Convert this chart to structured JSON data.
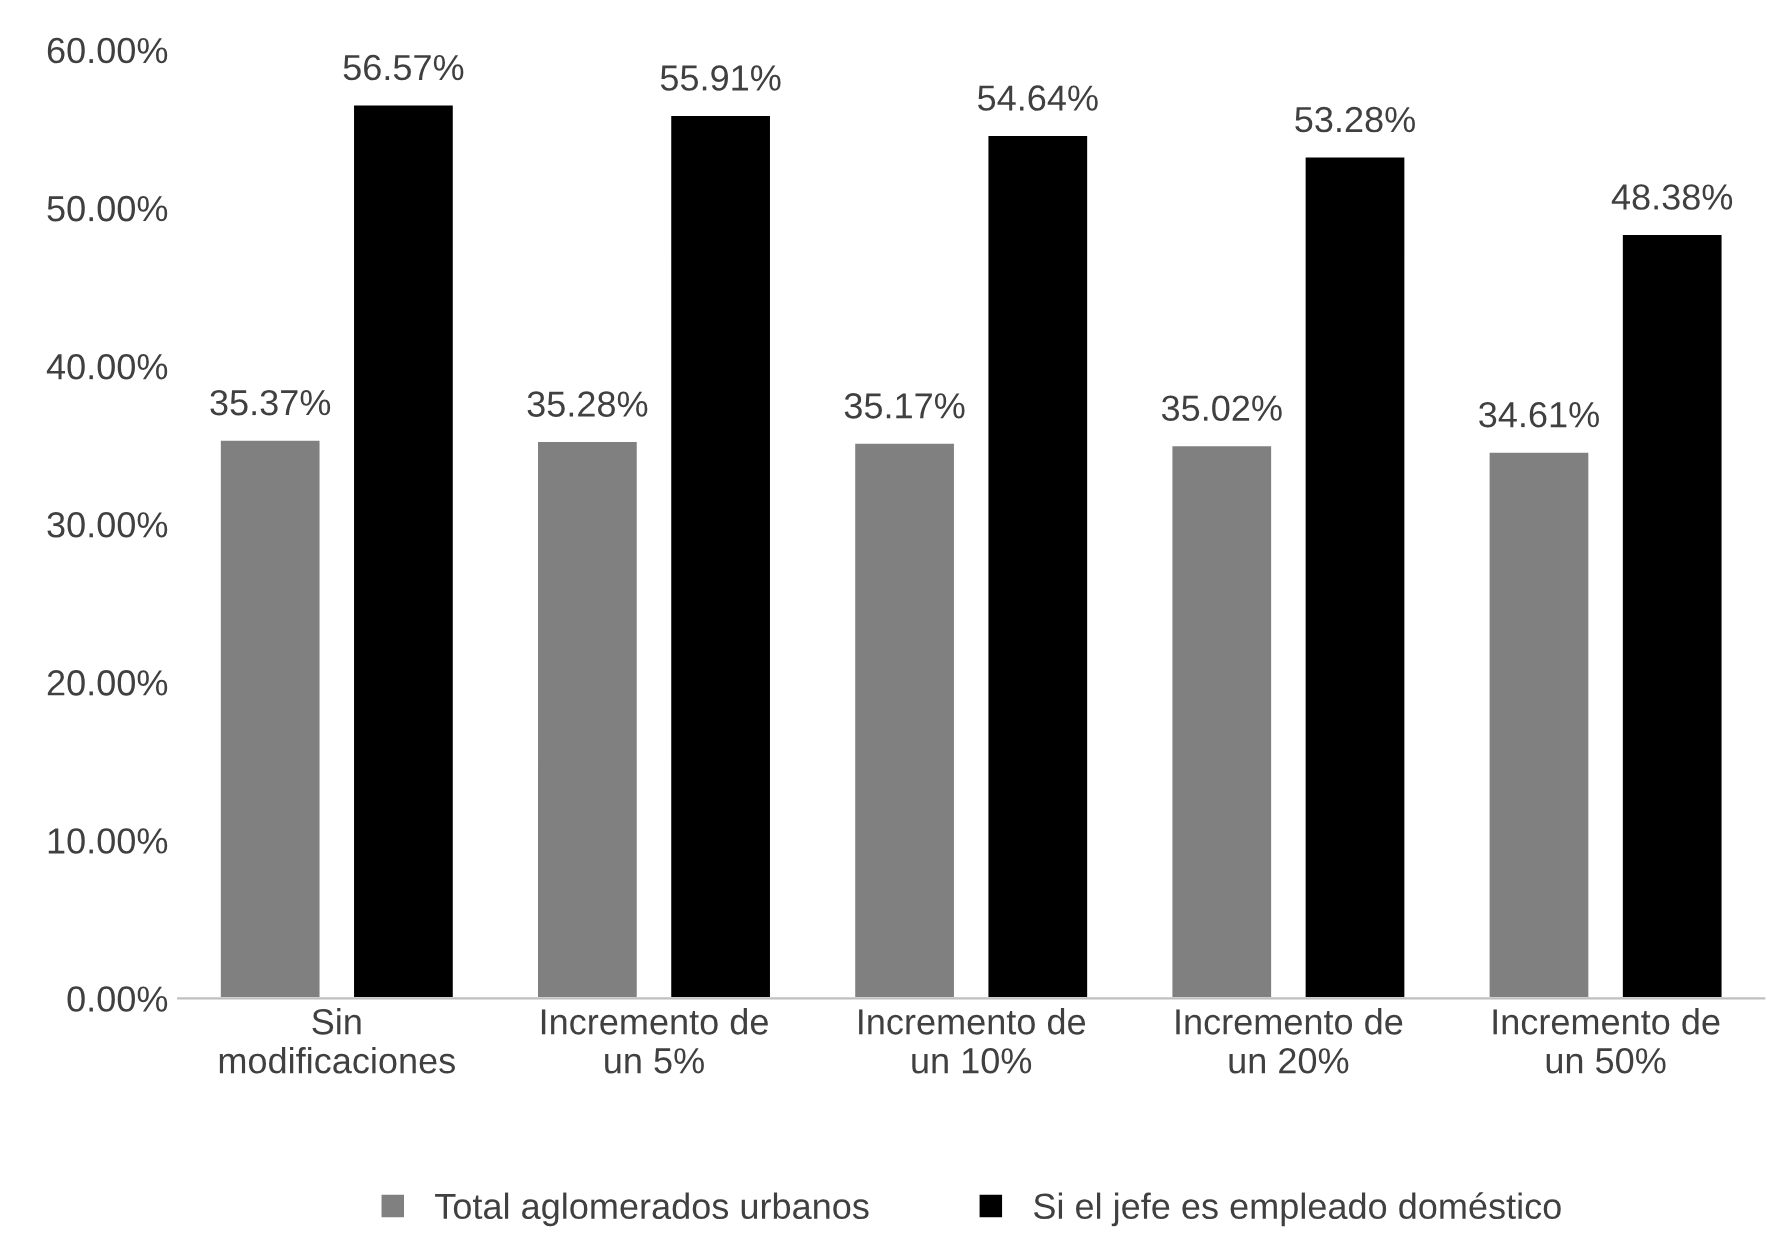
{
  "chart_data": {
    "type": "bar",
    "categories": [
      "Sin\nmodificaciones",
      "Incremento de\nun 5%",
      "Incremento de\nun 10%",
      "Incremento de\nun 20%",
      "Incremento de\nun 50%"
    ],
    "series": [
      {
        "name": "Total aglomerados urbanos",
        "color": "#808080",
        "values": [
          35.37,
          35.28,
          35.17,
          35.02,
          34.61
        ],
        "value_labels": [
          "35.37%",
          "35.28%",
          "35.17%",
          "35.02%",
          "34.61%"
        ]
      },
      {
        "name": "Si el jefe es empleado doméstico",
        "color": "#000000",
        "values": [
          56.57,
          55.91,
          54.64,
          53.28,
          48.38
        ],
        "value_labels": [
          "56.57%",
          "55.91%",
          "54.64%",
          "53.28%",
          "48.38%"
        ]
      }
    ],
    "ylim": [
      0,
      60
    ],
    "yticks": [
      {
        "value": 0,
        "label": "0.00%"
      },
      {
        "value": 10,
        "label": "10.00%"
      },
      {
        "value": 20,
        "label": "20.00%"
      },
      {
        "value": 30,
        "label": "30.00%"
      },
      {
        "value": 40,
        "label": "40.00%"
      },
      {
        "value": 50,
        "label": "50.00%"
      },
      {
        "value": 60,
        "label": "60.00%"
      }
    ],
    "grid": false,
    "legend": "bottom"
  }
}
